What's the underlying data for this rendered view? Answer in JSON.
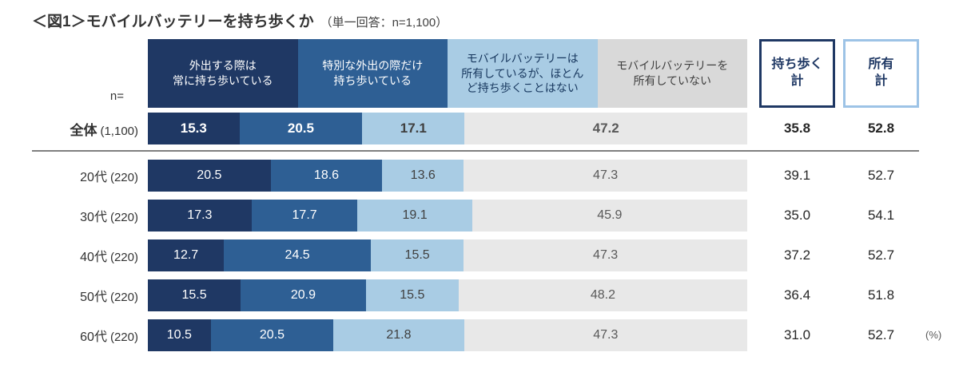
{
  "title": {
    "main": "＜図1＞モバイルバッテリーを持ち歩くか",
    "note": "（単一回答：n=1,100）"
  },
  "n_label": "n=",
  "percent_label": "(%)",
  "column_headers": [
    {
      "label": "外出する際は\n常に持ち歩いている",
      "bg": "#1F3864",
      "text": "#FFFFFF"
    },
    {
      "label": "特別な外出の際だけ\n持ち歩いている",
      "bg": "#2E5F94",
      "text": "#FFFFFF"
    },
    {
      "label": "モバイルバッテリーは\n所有しているが、ほとん\nど持ち歩くことはない",
      "bg": "#A9CCE4",
      "text": "#17375E"
    },
    {
      "label": "モバイルバッテリーを\n所有していない",
      "bg": "#D9D9D9",
      "text": "#3F3F3F"
    }
  ],
  "total_headers": [
    {
      "label": "持ち歩く\n計",
      "border": "#1F3864"
    },
    {
      "label": "所有\n計",
      "border": "#9DC3E6"
    }
  ],
  "chart_data": {
    "type": "bar",
    "stacked": true,
    "orientation": "horizontal",
    "unit": "%",
    "xlim": [
      0,
      100
    ],
    "categories": [
      "全体",
      "20代",
      "30代",
      "40代",
      "50代",
      "60代"
    ],
    "n": [
      "(1,100)",
      "(220)",
      "(220)",
      "(220)",
      "(220)",
      "(220)"
    ],
    "series": [
      {
        "name": "外出する際は常に持ち歩いている",
        "color": "#1F3864",
        "text_color": "#FFFFFF",
        "values": [
          15.3,
          20.5,
          17.3,
          12.7,
          15.5,
          10.5
        ]
      },
      {
        "name": "特別な外出の際だけ持ち歩いている",
        "color": "#2E5F94",
        "text_color": "#FFFFFF",
        "values": [
          20.5,
          18.6,
          17.7,
          24.5,
          20.9,
          20.5
        ]
      },
      {
        "name": "モバイルバッテリーは所有しているが、ほとんど持ち歩くことはない",
        "color": "#A9CCE4",
        "text_color": "#404040",
        "values": [
          17.1,
          13.6,
          19.1,
          15.5,
          15.5,
          21.8
        ]
      },
      {
        "name": "モバイルバッテリーを所有していない",
        "color": "#E8E8E8",
        "text_color": "#595959",
        "values": [
          47.2,
          47.3,
          45.9,
          47.3,
          48.2,
          47.3
        ]
      }
    ],
    "totals": {
      "carry": {
        "label": "持ち歩く計",
        "values": [
          35.8,
          39.1,
          35.0,
          37.2,
          36.4,
          31.0
        ]
      },
      "own": {
        "label": "所有計",
        "values": [
          52.8,
          52.7,
          54.1,
          52.7,
          51.8,
          52.7
        ]
      }
    }
  }
}
